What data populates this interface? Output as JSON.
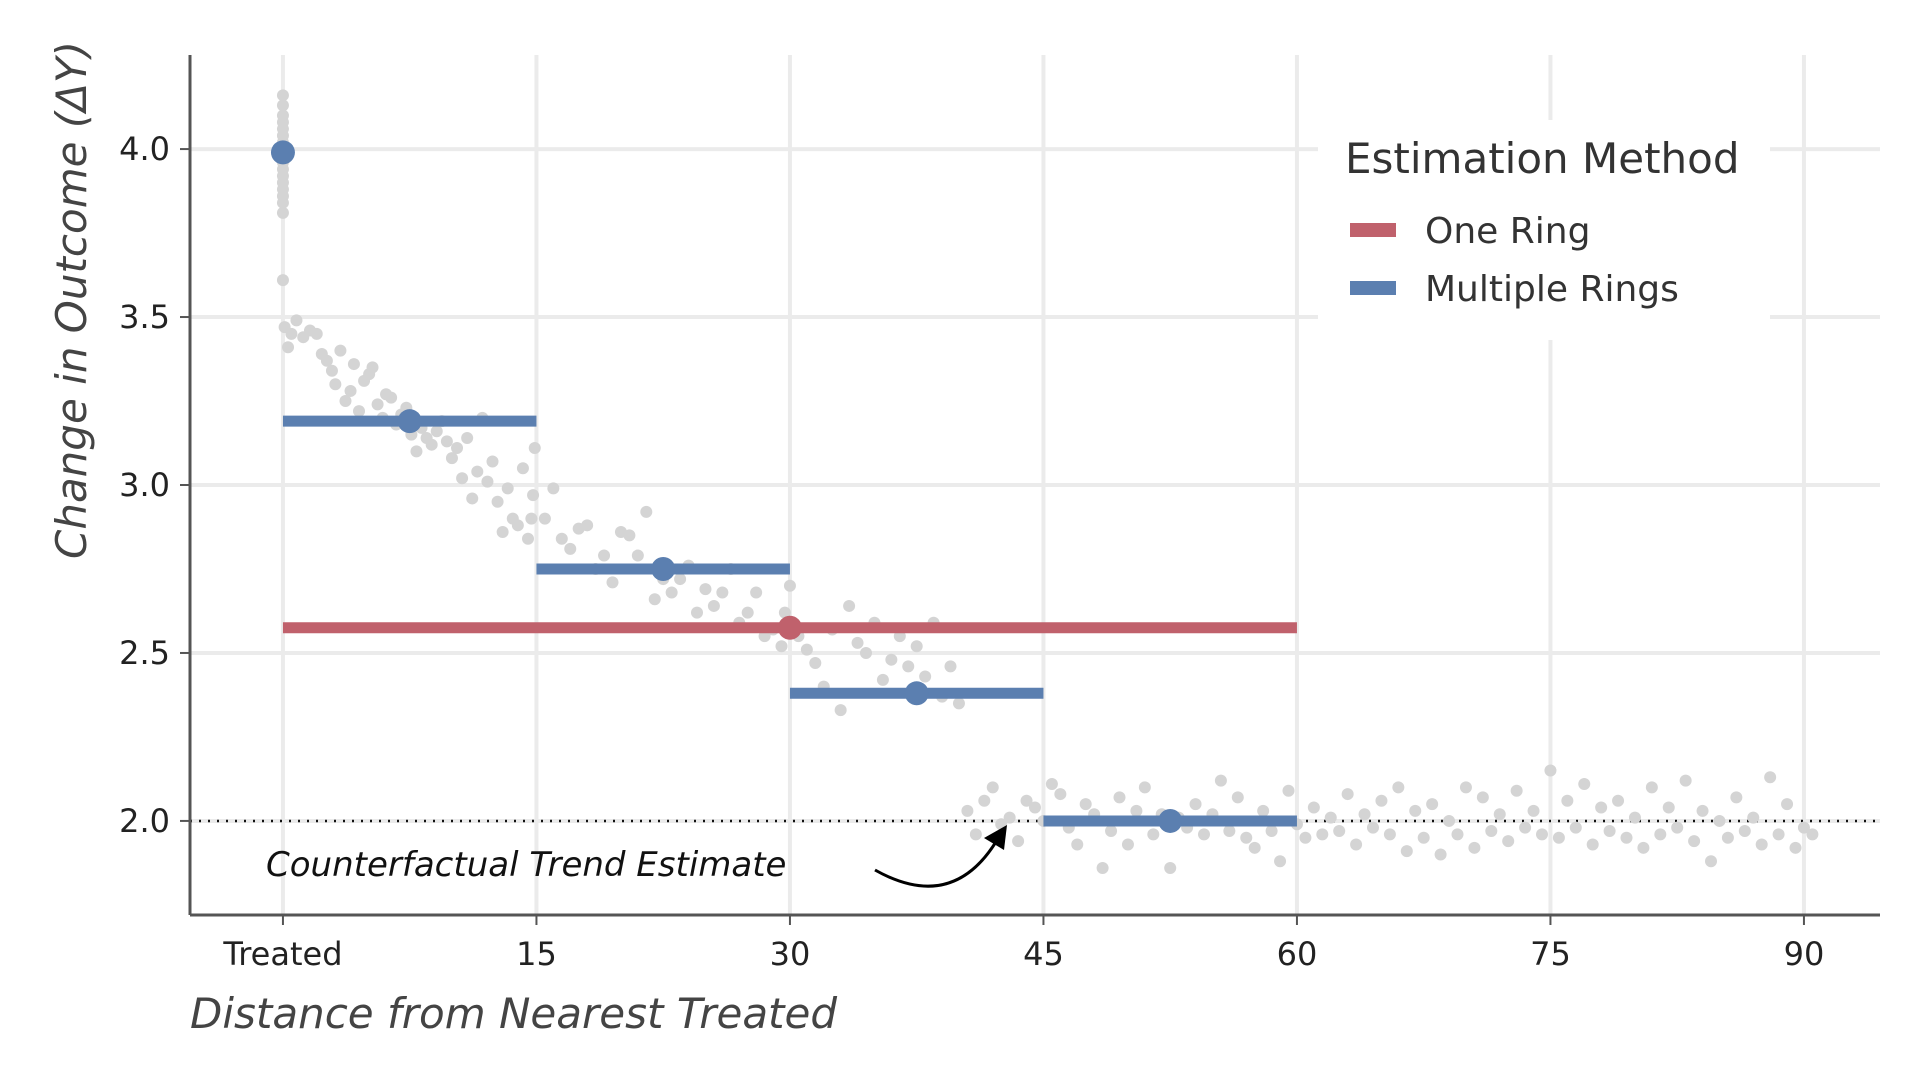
{
  "chart_data": {
    "type": "scatter",
    "title": "",
    "xlabel": "Distance from Nearest Treated",
    "ylabel": "Change in Outcome (ΔY)",
    "xlim": [
      -5.5,
      94.5
    ],
    "ylim": [
      1.72,
      4.28
    ],
    "x_ticks": [
      {
        "value": 0,
        "label": "Treated"
      },
      {
        "value": 15,
        "label": "15"
      },
      {
        "value": 30,
        "label": "30"
      },
      {
        "value": 45,
        "label": "45"
      },
      {
        "value": 60,
        "label": "60"
      },
      {
        "value": 75,
        "label": "75"
      },
      {
        "value": 90,
        "label": "90"
      }
    ],
    "y_ticks": [
      {
        "value": 2.0,
        "label": "2.0"
      },
      {
        "value": 2.5,
        "label": "2.5"
      },
      {
        "value": 3.0,
        "label": "3.0"
      },
      {
        "value": 3.5,
        "label": "3.5"
      },
      {
        "value": 4.0,
        "label": "4.0"
      }
    ],
    "grid": true,
    "legend": {
      "title": "Estimation Method",
      "placement": "top-right",
      "entries": [
        {
          "label": "One Ring",
          "color": "#c0616c"
        },
        {
          "label": "Multiple Rings",
          "color": "#5b7fb0"
        }
      ]
    },
    "reference_line": {
      "y": 2.0,
      "style": "dotted"
    },
    "annotation": {
      "text": "Counterfactual Trend Estimate",
      "arrow_target": [
        42.5,
        1.93
      ]
    },
    "series": [
      {
        "name": "One Ring",
        "color": "#c0616c",
        "segments": [
          {
            "x_start": 0,
            "x_end": 60,
            "y": 2.575,
            "point_x": 30
          }
        ]
      },
      {
        "name": "Multiple Rings",
        "color": "#5b7fb0",
        "segments": [
          {
            "x_start": 0,
            "x_end": 0,
            "y": 3.99,
            "point_x": 0
          },
          {
            "x_start": 0,
            "x_end": 15,
            "y": 3.19,
            "point_x": 7.5
          },
          {
            "x_start": 15,
            "x_end": 30,
            "y": 2.75,
            "point_x": 22.5
          },
          {
            "x_start": 30,
            "x_end": 45,
            "y": 2.38,
            "point_x": 37.5
          },
          {
            "x_start": 45,
            "x_end": 60,
            "y": 2.0,
            "point_x": 52.5
          }
        ]
      }
    ],
    "scatter_points": [
      [
        0,
        4.16
      ],
      [
        0,
        4.13
      ],
      [
        0,
        4.1
      ],
      [
        0,
        4.08
      ],
      [
        0,
        4.06
      ],
      [
        0,
        4.04
      ],
      [
        0,
        4.02
      ],
      [
        0,
        4.0
      ],
      [
        0,
        3.98
      ],
      [
        0,
        3.96
      ],
      [
        0,
        3.94
      ],
      [
        0,
        3.92
      ],
      [
        0,
        3.9
      ],
      [
        0,
        3.88
      ],
      [
        0,
        3.86
      ],
      [
        0,
        3.84
      ],
      [
        0,
        3.81
      ],
      [
        0,
        3.61
      ],
      [
        0.1,
        3.47
      ],
      [
        0.3,
        3.41
      ],
      [
        0.5,
        3.45
      ],
      [
        0.8,
        3.49
      ],
      [
        1.2,
        3.44
      ],
      [
        1.6,
        3.46
      ],
      [
        2,
        3.45
      ],
      [
        2.3,
        3.39
      ],
      [
        2.6,
        3.37
      ],
      [
        2.9,
        3.34
      ],
      [
        3.1,
        3.3
      ],
      [
        3.4,
        3.4
      ],
      [
        3.7,
        3.25
      ],
      [
        4,
        3.28
      ],
      [
        4.2,
        3.36
      ],
      [
        4.5,
        3.22
      ],
      [
        4.8,
        3.31
      ],
      [
        5.1,
        3.33
      ],
      [
        5.3,
        3.35
      ],
      [
        5.6,
        3.24
      ],
      [
        5.9,
        3.2
      ],
      [
        6.1,
        3.27
      ],
      [
        6.4,
        3.26
      ],
      [
        6.7,
        3.18
      ],
      [
        7,
        3.21
      ],
      [
        7.3,
        3.23
      ],
      [
        7.6,
        3.15
      ],
      [
        7.9,
        3.1
      ],
      [
        8.2,
        3.17
      ],
      [
        8.5,
        3.14
      ],
      [
        8.8,
        3.12
      ],
      [
        9.1,
        3.16
      ],
      [
        9.4,
        3.19
      ],
      [
        9.7,
        3.13
      ],
      [
        10,
        3.08
      ],
      [
        10.3,
        3.11
      ],
      [
        10.6,
        3.02
      ],
      [
        10.9,
        3.14
      ],
      [
        11.2,
        2.96
      ],
      [
        11.5,
        3.04
      ],
      [
        11.8,
        3.2
      ],
      [
        12.1,
        3.01
      ],
      [
        12.4,
        3.07
      ],
      [
        12.7,
        2.95
      ],
      [
        13,
        2.86
      ],
      [
        13.3,
        2.99
      ],
      [
        13.6,
        2.9
      ],
      [
        13.9,
        2.88
      ],
      [
        14.2,
        3.05
      ],
      [
        14.5,
        2.84
      ],
      [
        14.7,
        2.9
      ],
      [
        14.8,
        2.97
      ],
      [
        14.9,
        3.11
      ],
      [
        15.5,
        2.9
      ],
      [
        16,
        2.99
      ],
      [
        16.5,
        2.84
      ],
      [
        17,
        2.81
      ],
      [
        17.5,
        2.87
      ],
      [
        18,
        2.88
      ],
      [
        18.5,
        2.75
      ],
      [
        19,
        2.79
      ],
      [
        19.5,
        2.71
      ],
      [
        20,
        2.86
      ],
      [
        20.5,
        2.85
      ],
      [
        21,
        2.79
      ],
      [
        21.5,
        2.92
      ],
      [
        22,
        2.66
      ],
      [
        22.5,
        2.72
      ],
      [
        23,
        2.68
      ],
      [
        23.5,
        2.72
      ],
      [
        24,
        2.76
      ],
      [
        24.5,
        2.62
      ],
      [
        25,
        2.69
      ],
      [
        25.5,
        2.64
      ],
      [
        26,
        2.68
      ],
      [
        26.5,
        2.75
      ],
      [
        27,
        2.59
      ],
      [
        27.5,
        2.62
      ],
      [
        28,
        2.68
      ],
      [
        28.5,
        2.55
      ],
      [
        29,
        2.57
      ],
      [
        29.5,
        2.52
      ],
      [
        29.7,
        2.62
      ],
      [
        30,
        2.7
      ],
      [
        30.5,
        2.55
      ],
      [
        31,
        2.51
      ],
      [
        31.5,
        2.47
      ],
      [
        32,
        2.4
      ],
      [
        32.5,
        2.57
      ],
      [
        33,
        2.33
      ],
      [
        33.5,
        2.64
      ],
      [
        34,
        2.53
      ],
      [
        34.5,
        2.5
      ],
      [
        35,
        2.59
      ],
      [
        35.5,
        2.42
      ],
      [
        36,
        2.48
      ],
      [
        36.5,
        2.55
      ],
      [
        37,
        2.46
      ],
      [
        37.5,
        2.52
      ],
      [
        38,
        2.43
      ],
      [
        38.5,
        2.59
      ],
      [
        39,
        2.37
      ],
      [
        39.5,
        2.46
      ],
      [
        40,
        2.35
      ],
      [
        40.5,
        2.03
      ],
      [
        41,
        1.96
      ],
      [
        41.5,
        2.06
      ],
      [
        42,
        2.1
      ],
      [
        42.5,
        1.99
      ],
      [
        43,
        2.01
      ],
      [
        43.5,
        1.94
      ],
      [
        44,
        2.06
      ],
      [
        44.5,
        2.04
      ],
      [
        45,
        2.0
      ],
      [
        45.5,
        2.11
      ],
      [
        46,
        2.08
      ],
      [
        46.5,
        1.98
      ],
      [
        47,
        1.93
      ],
      [
        47.5,
        2.05
      ],
      [
        48,
        2.02
      ],
      [
        48.5,
        1.86
      ],
      [
        49,
        1.97
      ],
      [
        49.5,
        2.07
      ],
      [
        50,
        1.93
      ],
      [
        50.5,
        2.03
      ],
      [
        51,
        2.1
      ],
      [
        51.5,
        1.96
      ],
      [
        52,
        2.02
      ],
      [
        52.5,
        1.86
      ],
      [
        53,
        2.01
      ],
      [
        53.5,
        1.98
      ],
      [
        54,
        2.05
      ],
      [
        54.5,
        1.96
      ],
      [
        55,
        2.02
      ],
      [
        55.5,
        2.12
      ],
      [
        56,
        1.97
      ],
      [
        56.5,
        2.07
      ],
      [
        57,
        1.95
      ],
      [
        57.5,
        1.92
      ],
      [
        58,
        2.03
      ],
      [
        58.5,
        1.97
      ],
      [
        59,
        1.88
      ],
      [
        59.5,
        2.09
      ],
      [
        60,
        1.99
      ],
      [
        60.5,
        1.95
      ],
      [
        61,
        2.04
      ],
      [
        61.5,
        1.96
      ],
      [
        62,
        2.01
      ],
      [
        62.5,
        1.97
      ],
      [
        63,
        2.08
      ],
      [
        63.5,
        1.93
      ],
      [
        64,
        2.02
      ],
      [
        64.5,
        1.98
      ],
      [
        65,
        2.06
      ],
      [
        65.5,
        1.96
      ],
      [
        66,
        2.1
      ],
      [
        66.5,
        1.91
      ],
      [
        67,
        2.03
      ],
      [
        67.5,
        1.95
      ],
      [
        68,
        2.05
      ],
      [
        68.5,
        1.9
      ],
      [
        69,
        2.0
      ],
      [
        69.5,
        1.96
      ],
      [
        70,
        2.1
      ],
      [
        70.5,
        1.92
      ],
      [
        71,
        2.07
      ],
      [
        71.5,
        1.97
      ],
      [
        72,
        2.02
      ],
      [
        72.5,
        1.94
      ],
      [
        73,
        2.09
      ],
      [
        73.5,
        1.98
      ],
      [
        74,
        2.03
      ],
      [
        74.5,
        1.96
      ],
      [
        75,
        2.15
      ],
      [
        75.5,
        1.95
      ],
      [
        76,
        2.06
      ],
      [
        76.5,
        1.98
      ],
      [
        77,
        2.11
      ],
      [
        77.5,
        1.93
      ],
      [
        78,
        2.04
      ],
      [
        78.5,
        1.97
      ],
      [
        79,
        2.06
      ],
      [
        79.5,
        1.95
      ],
      [
        80,
        2.01
      ],
      [
        80.5,
        1.92
      ],
      [
        81,
        2.1
      ],
      [
        81.5,
        1.96
      ],
      [
        82,
        2.04
      ],
      [
        82.5,
        1.98
      ],
      [
        83,
        2.12
      ],
      [
        83.5,
        1.94
      ],
      [
        84,
        2.03
      ],
      [
        84.5,
        1.88
      ],
      [
        85,
        2.0
      ],
      [
        85.5,
        1.95
      ],
      [
        86,
        2.07
      ],
      [
        86.5,
        1.97
      ],
      [
        87,
        2.01
      ],
      [
        87.5,
        1.93
      ],
      [
        88,
        2.13
      ],
      [
        88.5,
        1.96
      ],
      [
        89,
        2.05
      ],
      [
        89.5,
        1.92
      ],
      [
        90,
        1.98
      ],
      [
        90.5,
        1.96
      ]
    ]
  }
}
